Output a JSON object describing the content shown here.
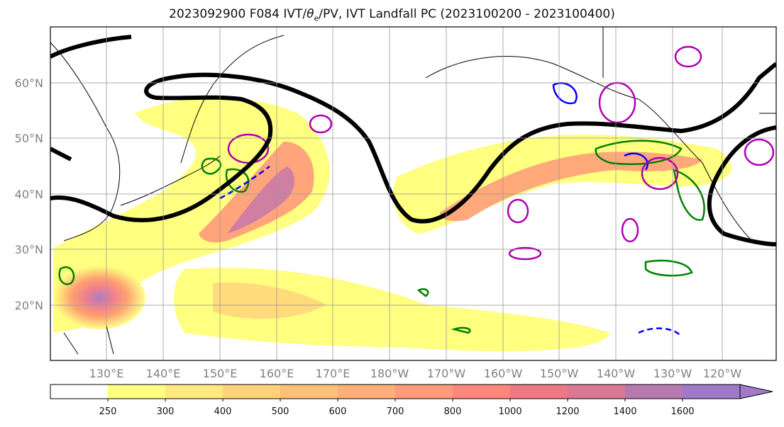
{
  "title_pre": "2023092900 F084 IVT/",
  "title_theta": "θ",
  "title_sub": "e",
  "title_post": "/PV, IVT Landfall PC (2023100200 - 2023100400)",
  "lat_labels": [
    "60°N",
    "50°N",
    "40°N",
    "30°N",
    "20°N"
  ],
  "lon_labels": [
    "130°E",
    "140°E",
    "150°E",
    "160°E",
    "170°E",
    "180°W",
    "170°W",
    "160°W",
    "150°W",
    "140°W",
    "130°W",
    "120°W"
  ],
  "colorbar": {
    "ticks": [
      "250",
      "300",
      "400",
      "500",
      "600",
      "700",
      "800",
      "1000",
      "1200",
      "1400",
      "1600"
    ],
    "colors": [
      "#ffffff",
      "#ffff80",
      "#ffe880",
      "#ffd27a",
      "#ffc07a",
      "#ffb07a",
      "#ff9a7a",
      "#ff867c",
      "#f07884",
      "#d87894",
      "#b878b0",
      "#a07ac8"
    ]
  },
  "contour_colors": {
    "height": "#000000",
    "theta_e": "#008000",
    "pv_blue": "#0000ff",
    "pv_magenta": "#b000b0"
  }
}
